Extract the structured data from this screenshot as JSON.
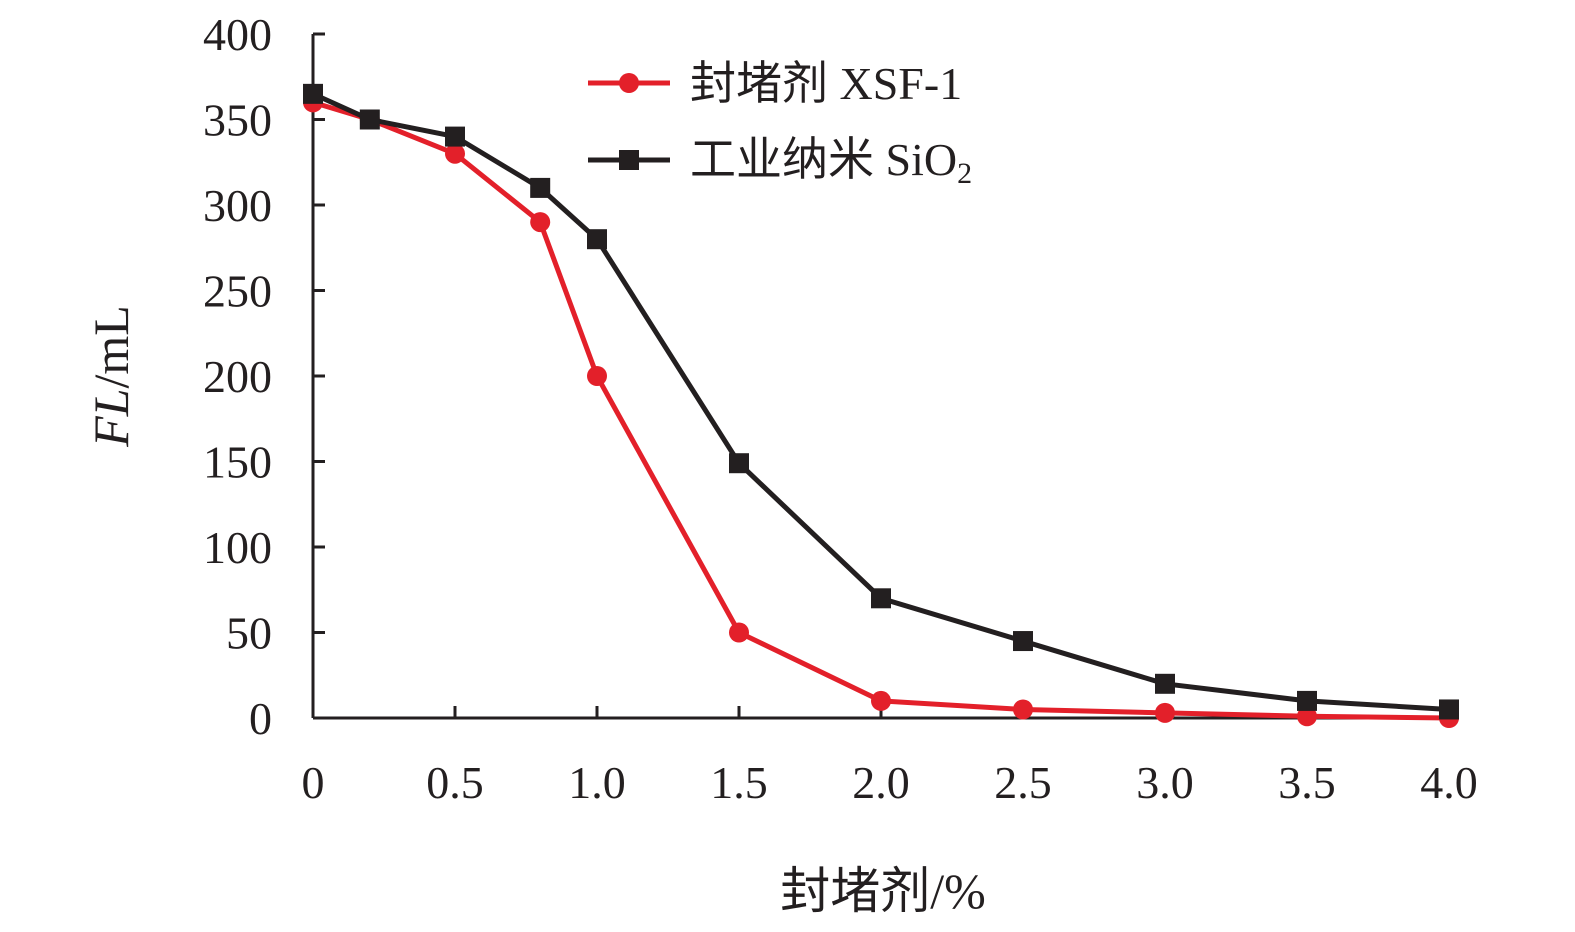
{
  "chart_data": {
    "type": "line",
    "title": "",
    "xlabel": "封堵剂/%",
    "ylabel": {
      "italic": "FL",
      "rest": "/mL"
    },
    "xlim": [
      0,
      4.0
    ],
    "ylim": [
      0,
      400
    ],
    "x_ticks": [
      0,
      0.5,
      1.0,
      1.5,
      2.0,
      2.5,
      3.0,
      3.5,
      4.0
    ],
    "x_tick_labels": [
      "0",
      "0.5",
      "1.0",
      "1.5",
      "2.0",
      "2.5",
      "3.0",
      "3.5",
      "4.0"
    ],
    "y_ticks": [
      0,
      50,
      100,
      150,
      200,
      250,
      300,
      350,
      400
    ],
    "y_tick_labels": [
      "0",
      "50",
      "100",
      "150",
      "200",
      "250",
      "300",
      "350",
      "400"
    ],
    "grid": false,
    "legend_position": "top-center",
    "series": [
      {
        "name": "封堵剂 XSF-1",
        "color": "#e3202a",
        "marker": "circle",
        "x": [
          0,
          0.2,
          0.5,
          0.8,
          1.0,
          1.5,
          2.0,
          2.5,
          3.0,
          3.5,
          4.0
        ],
        "values": [
          360,
          350,
          330,
          290,
          200,
          50,
          10,
          5,
          3,
          1,
          0
        ]
      },
      {
        "name": "工业纳米 SiO",
        "name_subscript": "2",
        "color": "#231f20",
        "marker": "square",
        "x": [
          0,
          0.2,
          0.5,
          0.8,
          1.0,
          1.5,
          2.0,
          2.5,
          3.0,
          3.5,
          4.0
        ],
        "values": [
          365,
          350,
          340,
          310,
          280,
          149,
          70,
          45,
          20,
          10,
          5
        ]
      }
    ]
  }
}
